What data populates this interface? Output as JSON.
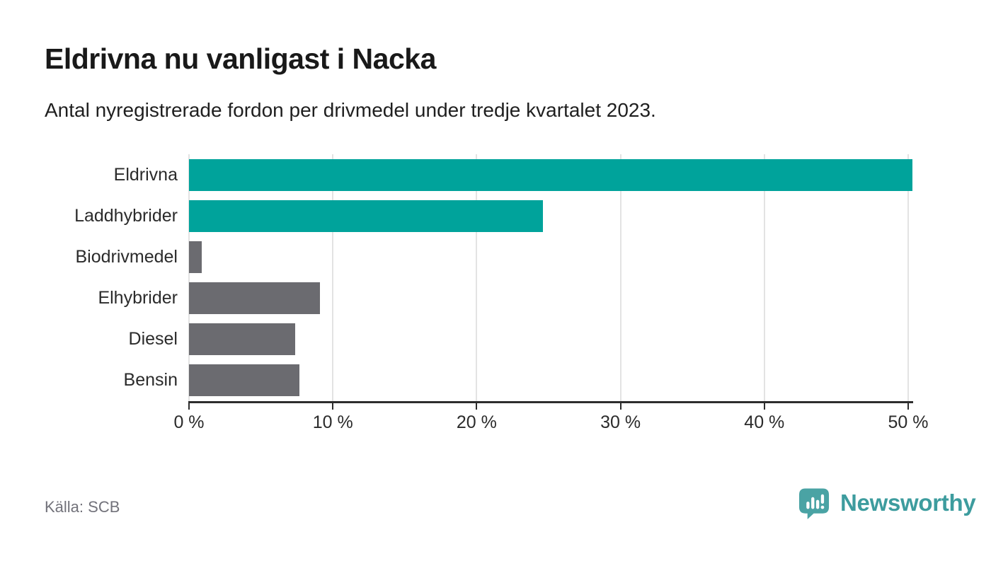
{
  "header": {
    "title": "Eldrivna nu vanligast i Nacka",
    "subtitle": "Antal nyregistrerade fordon per drivmedel under tredje kvartalet 2023."
  },
  "chart_data": {
    "type": "bar",
    "orientation": "horizontal",
    "title": "Eldrivna nu vanligast i Nacka",
    "subtitle": "Antal nyregistrerade fordon per drivmedel under tredje kvartalet 2023.",
    "categories": [
      "Eldrivna",
      "Laddhybrider",
      "Biodrivmedel",
      "Elhybrider",
      "Diesel",
      "Bensin"
    ],
    "values": [
      50.3,
      24.6,
      0.9,
      9.1,
      7.4,
      7.7
    ],
    "unit": "%",
    "xlabel": "",
    "ylabel": "",
    "xlim": [
      0,
      50
    ],
    "x_ticks": [
      0,
      10,
      20,
      30,
      40,
      50
    ],
    "x_tick_labels": [
      "0 %",
      "10 %",
      "20 %",
      "30 %",
      "40 %",
      "50 %"
    ],
    "grid": true,
    "legend": "none",
    "highlight_color": "#00a39b",
    "default_color": "#6b6b70",
    "bar_colors": [
      "#00a39b",
      "#00a39b",
      "#6b6b70",
      "#6b6b70",
      "#6b6b70",
      "#6b6b70"
    ]
  },
  "footer": {
    "source": "Källa: SCB",
    "brand": "Newsworthy",
    "brand_color": "#3d9c9e",
    "logo_color": "#4aa3a4"
  }
}
